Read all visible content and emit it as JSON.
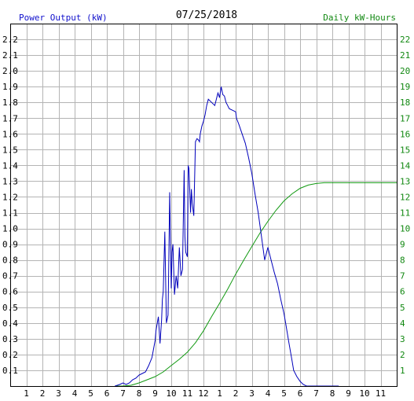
{
  "chart_data": {
    "type": "line",
    "title": "07/25/2018",
    "y_left_label": "Power Output (kW)",
    "y_right_label": "Daily kW-Hours",
    "y_left_ticks": [
      "0.1",
      "0.2",
      "0.3",
      "0.4",
      "0.5",
      "0.6",
      "0.7",
      "0.8",
      "0.9",
      "1.0",
      "1.1",
      "1.2",
      "1.3",
      "1.4",
      "1.5",
      "1.6",
      "1.7",
      "1.8",
      "1.9",
      "2.0",
      "2.1",
      "2.2"
    ],
    "y_right_ticks": [
      "1",
      "2",
      "3",
      "4",
      "5",
      "6",
      "7",
      "8",
      "9",
      "10",
      "11",
      "12",
      "13",
      "14",
      "15",
      "16",
      "17",
      "18",
      "19",
      "20",
      "21",
      "22"
    ],
    "x_ticks": [
      "1",
      "2",
      "3",
      "4",
      "5",
      "6",
      "7",
      "8",
      "9",
      "10",
      "11",
      "12",
      "1",
      "2",
      "3",
      "4",
      "5",
      "6",
      "7",
      "8",
      "9",
      "10",
      "11"
    ],
    "x_range_hours": [
      0,
      24
    ],
    "y_left_range": [
      0,
      2.3
    ],
    "y_right_range": [
      0,
      23
    ],
    "grid": true,
    "colors": {
      "power": "#0000bb",
      "energy": "#119911",
      "grid": "#b4b4b4",
      "frame": "#000000"
    },
    "series": [
      {
        "name": "Power Output (kW)",
        "axis": "left",
        "x": [
          6.5,
          6.8,
          7.0,
          7.2,
          7.4,
          7.6,
          7.8,
          8.0,
          8.2,
          8.4,
          8.6,
          8.8,
          9.0,
          9.05,
          9.1,
          9.2,
          9.3,
          9.4,
          9.45,
          9.5,
          9.6,
          9.7,
          9.8,
          9.85,
          9.9,
          10.0,
          10.05,
          10.1,
          10.2,
          10.3,
          10.4,
          10.5,
          10.6,
          10.7,
          10.8,
          10.85,
          10.9,
          11.0,
          11.05,
          11.1,
          11.2,
          11.25,
          11.3,
          11.4,
          11.5,
          11.6,
          11.7,
          11.75,
          11.8,
          11.9,
          12.0,
          12.1,
          12.2,
          12.3,
          12.5,
          12.7,
          12.9,
          13.0,
          13.1,
          13.2,
          13.3,
          13.4,
          13.5,
          13.6,
          13.8,
          14.0,
          14.05,
          14.2,
          14.4,
          14.6,
          14.8,
          15.0,
          15.2,
          15.4,
          15.6,
          15.8,
          16.0,
          16.2,
          16.4,
          16.6,
          16.8,
          17.0,
          17.1,
          17.2,
          17.3,
          17.4,
          17.5,
          17.6,
          17.8,
          18.0,
          18.2,
          18.4,
          18.6,
          18.8,
          19.0,
          19.2,
          19.4,
          19.6,
          19.8,
          20.0,
          20.2,
          20.4
        ],
        "y": [
          0.0,
          0.01,
          0.02,
          0.01,
          0.02,
          0.04,
          0.05,
          0.07,
          0.08,
          0.09,
          0.13,
          0.18,
          0.29,
          0.35,
          0.38,
          0.44,
          0.27,
          0.42,
          0.55,
          0.6,
          0.98,
          0.4,
          0.45,
          0.8,
          1.23,
          0.62,
          0.85,
          0.9,
          0.58,
          0.7,
          0.62,
          0.88,
          0.7,
          0.74,
          1.37,
          0.95,
          0.85,
          0.82,
          1.4,
          1.38,
          1.1,
          1.25,
          1.16,
          1.08,
          1.55,
          1.57,
          1.56,
          1.55,
          1.6,
          1.65,
          1.68,
          1.72,
          1.78,
          1.82,
          1.8,
          1.78,
          1.86,
          1.83,
          1.9,
          1.85,
          1.84,
          1.8,
          1.78,
          1.76,
          1.75,
          1.74,
          1.7,
          1.66,
          1.6,
          1.54,
          1.45,
          1.35,
          1.22,
          1.1,
          0.95,
          0.8,
          0.88,
          0.8,
          0.72,
          0.65,
          0.55,
          0.46,
          0.4,
          0.34,
          0.28,
          0.22,
          0.16,
          0.1,
          0.06,
          0.03,
          0.01,
          0.0,
          0.0,
          0.0,
          0.0,
          0.0,
          0.0,
          0.0,
          0.0,
          0.0,
          0.0,
          0.0
        ]
      },
      {
        "name": "Daily kW-Hours",
        "axis": "right",
        "x": [
          6.5,
          7.0,
          7.5,
          8.0,
          8.5,
          9.0,
          9.5,
          10.0,
          10.5,
          11.0,
          11.5,
          12.0,
          12.5,
          13.0,
          13.5,
          14.0,
          14.5,
          15.0,
          15.5,
          16.0,
          16.5,
          17.0,
          17.5,
          18.0,
          18.5,
          19.0,
          19.5,
          20.0,
          20.5,
          21.0,
          22.0,
          23.0,
          24.0
        ],
        "y": [
          0.0,
          0.0,
          0.05,
          0.2,
          0.4,
          0.6,
          0.9,
          1.3,
          1.7,
          2.15,
          2.75,
          3.5,
          4.4,
          5.25,
          6.15,
          7.1,
          8.0,
          8.85,
          9.7,
          10.45,
          11.15,
          11.75,
          12.2,
          12.55,
          12.75,
          12.85,
          12.9,
          12.9,
          12.9,
          12.9,
          12.9,
          12.9,
          12.9
        ]
      }
    ]
  }
}
